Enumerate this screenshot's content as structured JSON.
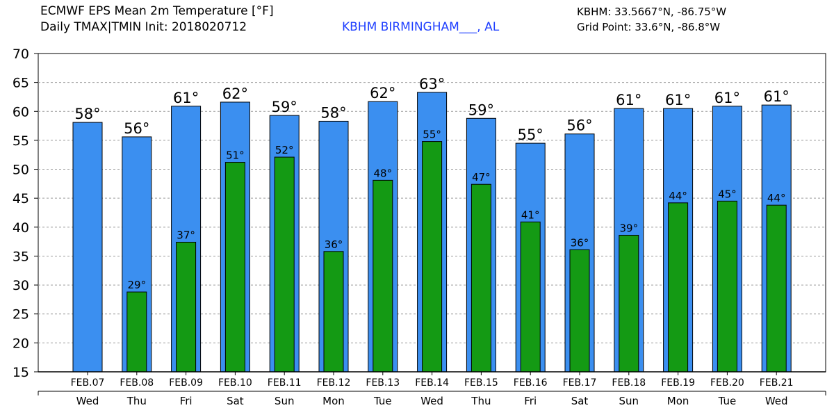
{
  "header": {
    "title": "ECMWF EPS Mean 2m Temperature [°F]",
    "subtitle": "Daily TMAX|TMIN Init: 2018020712",
    "station": "KBHM BIRMINGHAM___, AL",
    "station_coords": "KBHM: 33.5667°N, -86.75°W",
    "grid_point": "Grid Point: 33.6°N, -86.8°W"
  },
  "chart_data": {
    "type": "bar",
    "title": "ECMWF EPS Mean 2m Temperature [°F]",
    "subtitle": "Daily TMAX|TMIN Init: 2018020712",
    "categories": [
      "FEB.07",
      "FEB.08",
      "FEB.09",
      "FEB.10",
      "FEB.11",
      "FEB.12",
      "FEB.13",
      "FEB.14",
      "FEB.15",
      "FEB.16",
      "FEB.17",
      "FEB.18",
      "FEB.19",
      "FEB.20",
      "FEB.21"
    ],
    "weekdays": [
      "Wed",
      "Thu",
      "Fri",
      "Sat",
      "Sun",
      "Mon",
      "Tue",
      "Wed",
      "Thu",
      "Fri",
      "Sat",
      "Sun",
      "Mon",
      "Tue",
      "Wed"
    ],
    "series": [
      {
        "name": "TMAX",
        "values": [
          58.1,
          55.6,
          60.9,
          61.6,
          59.3,
          58.3,
          61.7,
          63.3,
          58.8,
          54.5,
          56.1,
          60.5,
          60.5,
          60.9,
          61.1
        ],
        "labels": [
          "58°",
          "56°",
          "61°",
          "62°",
          "59°",
          "58°",
          "62°",
          "63°",
          "59°",
          "55°",
          "56°",
          "61°",
          "61°",
          "61°",
          "61°"
        ],
        "color": "#3b8ff0"
      },
      {
        "name": "TMIN",
        "values": [
          null,
          28.8,
          37.4,
          51.2,
          52.1,
          35.8,
          48.1,
          54.8,
          47.4,
          40.9,
          36.1,
          38.6,
          44.2,
          44.5,
          43.8
        ],
        "labels": [
          "",
          "29°",
          "37°",
          "51°",
          "52°",
          "36°",
          "48°",
          "55°",
          "47°",
          "41°",
          "36°",
          "39°",
          "44°",
          "45°",
          "44°"
        ],
        "color": "#149a14"
      }
    ],
    "yticks": [
      15,
      20,
      25,
      30,
      35,
      40,
      45,
      50,
      55,
      60,
      65,
      70
    ],
    "ylim": [
      15,
      70
    ],
    "grid": "y-dashed",
    "xlabel": "",
    "ylabel": ""
  }
}
